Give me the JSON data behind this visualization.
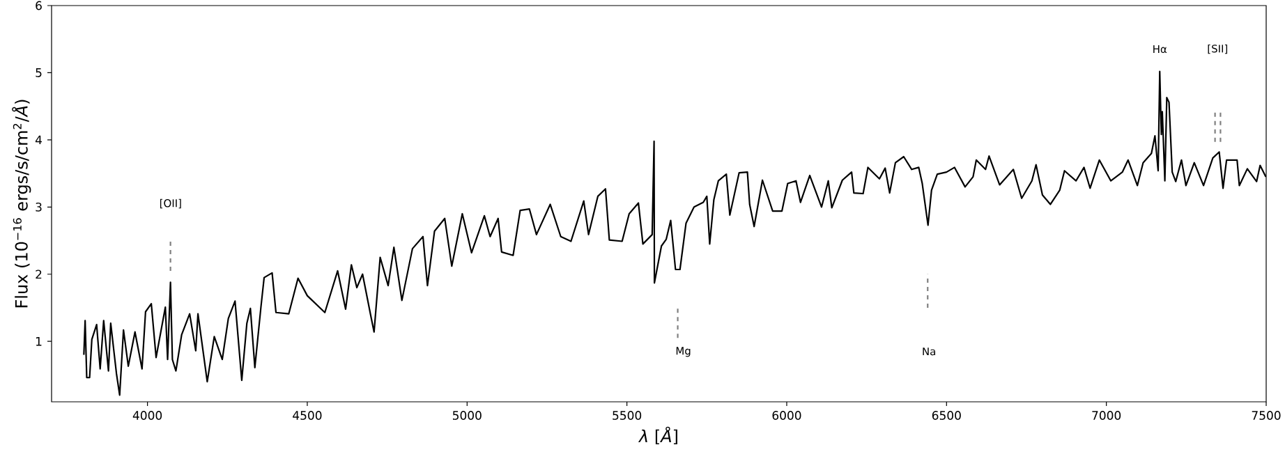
{
  "chart_data": {
    "type": "line",
    "xlabel": "*λ* [*Å*]",
    "ylabel": "Flux (10$^{−16}$ ergs/s/cm$^{2}$/*Å*)",
    "xlim": [
      3700,
      7500
    ],
    "ylim": [
      0.1,
      6
    ],
    "xticks": [
      4000,
      4500,
      5000,
      5500,
      6000,
      6500,
      7000,
      7500
    ],
    "yticks": [
      1,
      2,
      3,
      4,
      5,
      6
    ],
    "series": [
      {
        "color": "#000000",
        "line_style": "solid",
        "x": [
          3801,
          3805,
          3810,
          3819,
          3826,
          3841,
          3852,
          3863,
          3878,
          3885,
          3903,
          3913,
          3925,
          3940,
          3961,
          3983,
          3994,
          4012,
          4027,
          4056,
          4063,
          4072,
          4078,
          4089,
          4107,
          4132,
          4151,
          4158,
          4187,
          4209,
          4234,
          4253,
          4274,
          4295,
          4311,
          4322,
          4336,
          4355,
          4365,
          4390,
          4402,
          4442,
          4471,
          4500,
          4555,
          4595,
          4620,
          4638,
          4655,
          4673,
          4700,
          4709,
          4728,
          4753,
          4771,
          4796,
          4829,
          4862,
          4876,
          4898,
          4930,
          4952,
          4985,
          5014,
          5054,
          5072,
          5097,
          5108,
          5144,
          5166,
          5195,
          5217,
          5260,
          5293,
          5325,
          5365,
          5380,
          5409,
          5433,
          5445,
          5485,
          5507,
          5536,
          5550,
          5579,
          5585,
          5586,
          5608,
          5623,
          5637,
          5652,
          5666,
          5685,
          5710,
          5739,
          5750,
          5759,
          5772,
          5786,
          5811,
          5822,
          5851,
          5877,
          5884,
          5898,
          5924,
          5956,
          5985,
          6003,
          6029,
          6043,
          6072,
          6109,
          6130,
          6141,
          6174,
          6203,
          6210,
          6239,
          6254,
          6290,
          6308,
          6322,
          6340,
          6366,
          6391,
          6413,
          6424,
          6442,
          6453,
          6471,
          6500,
          6525,
          6558,
          6583,
          6593,
          6622,
          6633,
          6666,
          6709,
          6735,
          6767,
          6780,
          6800,
          6825,
          6854,
          6869,
          6905,
          6930,
          6949,
          6978,
          7014,
          7050,
          7068,
          7097,
          7115,
          7141,
          7152,
          7162,
          7167,
          7172,
          7175,
          7183,
          7189,
          7196,
          7206,
          7217,
          7235,
          7249,
          7275,
          7304,
          7333,
          7353,
          7365,
          7376,
          7409,
          7416,
          7441,
          7470,
          7481,
          7499
        ],
        "values": [
          0.8,
          1.31,
          0.46,
          0.46,
          1.03,
          1.25,
          0.59,
          1.31,
          0.56,
          1.27,
          0.52,
          0.2,
          1.17,
          0.63,
          1.14,
          0.59,
          1.44,
          1.56,
          0.76,
          1.51,
          0.73,
          1.88,
          0.73,
          0.56,
          1.1,
          1.41,
          0.86,
          1.41,
          0.4,
          1.07,
          0.73,
          1.34,
          1.6,
          0.42,
          1.27,
          1.49,
          0.61,
          1.51,
          1.95,
          2.02,
          1.43,
          1.41,
          1.94,
          1.68,
          1.43,
          2.05,
          1.48,
          2.14,
          1.8,
          2.0,
          1.35,
          1.14,
          2.25,
          1.83,
          2.4,
          1.61,
          2.38,
          2.56,
          1.83,
          2.64,
          2.83,
          2.12,
          2.9,
          2.32,
          2.87,
          2.56,
          2.83,
          2.33,
          2.28,
          2.95,
          2.97,
          2.59,
          3.04,
          2.56,
          2.49,
          3.09,
          2.59,
          3.16,
          3.27,
          2.51,
          2.49,
          2.9,
          3.06,
          2.45,
          2.59,
          3.98,
          1.87,
          2.42,
          2.52,
          2.8,
          2.07,
          2.07,
          2.76,
          3.0,
          3.07,
          3.16,
          2.45,
          3.11,
          3.39,
          3.49,
          2.88,
          3.51,
          3.52,
          3.04,
          2.71,
          3.4,
          2.94,
          2.94,
          3.35,
          3.39,
          3.07,
          3.47,
          3.0,
          3.39,
          2.99,
          3.4,
          3.52,
          3.21,
          3.2,
          3.59,
          3.42,
          3.58,
          3.21,
          3.66,
          3.75,
          3.56,
          3.59,
          3.35,
          2.73,
          3.25,
          3.49,
          3.52,
          3.59,
          3.3,
          3.45,
          3.7,
          3.56,
          3.76,
          3.33,
          3.56,
          3.13,
          3.39,
          3.63,
          3.18,
          3.04,
          3.25,
          3.54,
          3.39,
          3.59,
          3.28,
          3.7,
          3.39,
          3.52,
          3.7,
          3.32,
          3.66,
          3.8,
          4.06,
          3.54,
          5.02,
          4.08,
          4.42,
          3.39,
          4.63,
          4.56,
          3.52,
          3.38,
          3.7,
          3.32,
          3.66,
          3.32,
          3.73,
          3.82,
          3.28,
          3.7,
          3.7,
          3.32,
          3.57,
          3.38,
          3.62,
          3.45
        ]
      },
      {
        "color": "#808080",
        "line_style": "dashed",
        "x": [
          4072,
          4072,
          null,
          5659,
          5659,
          null,
          6441,
          6441,
          null,
          7340,
          7340,
          null,
          7357,
          7357
        ],
        "values": [
          2.05,
          2.5,
          null,
          1.05,
          1.5,
          null,
          1.5,
          2.0,
          null,
          3.97,
          4.42,
          null,
          3.97,
          4.42
        ]
      }
    ],
    "annotations": [
      "[OII]",
      {
        "text": "Mg",
        "x": 5659,
        "y": 1.05
      },
      "Na",
      {
        "text": "Hα",
        "x": 7167,
        "y": 5.02
      },
      "[SII]"
    ]
  }
}
